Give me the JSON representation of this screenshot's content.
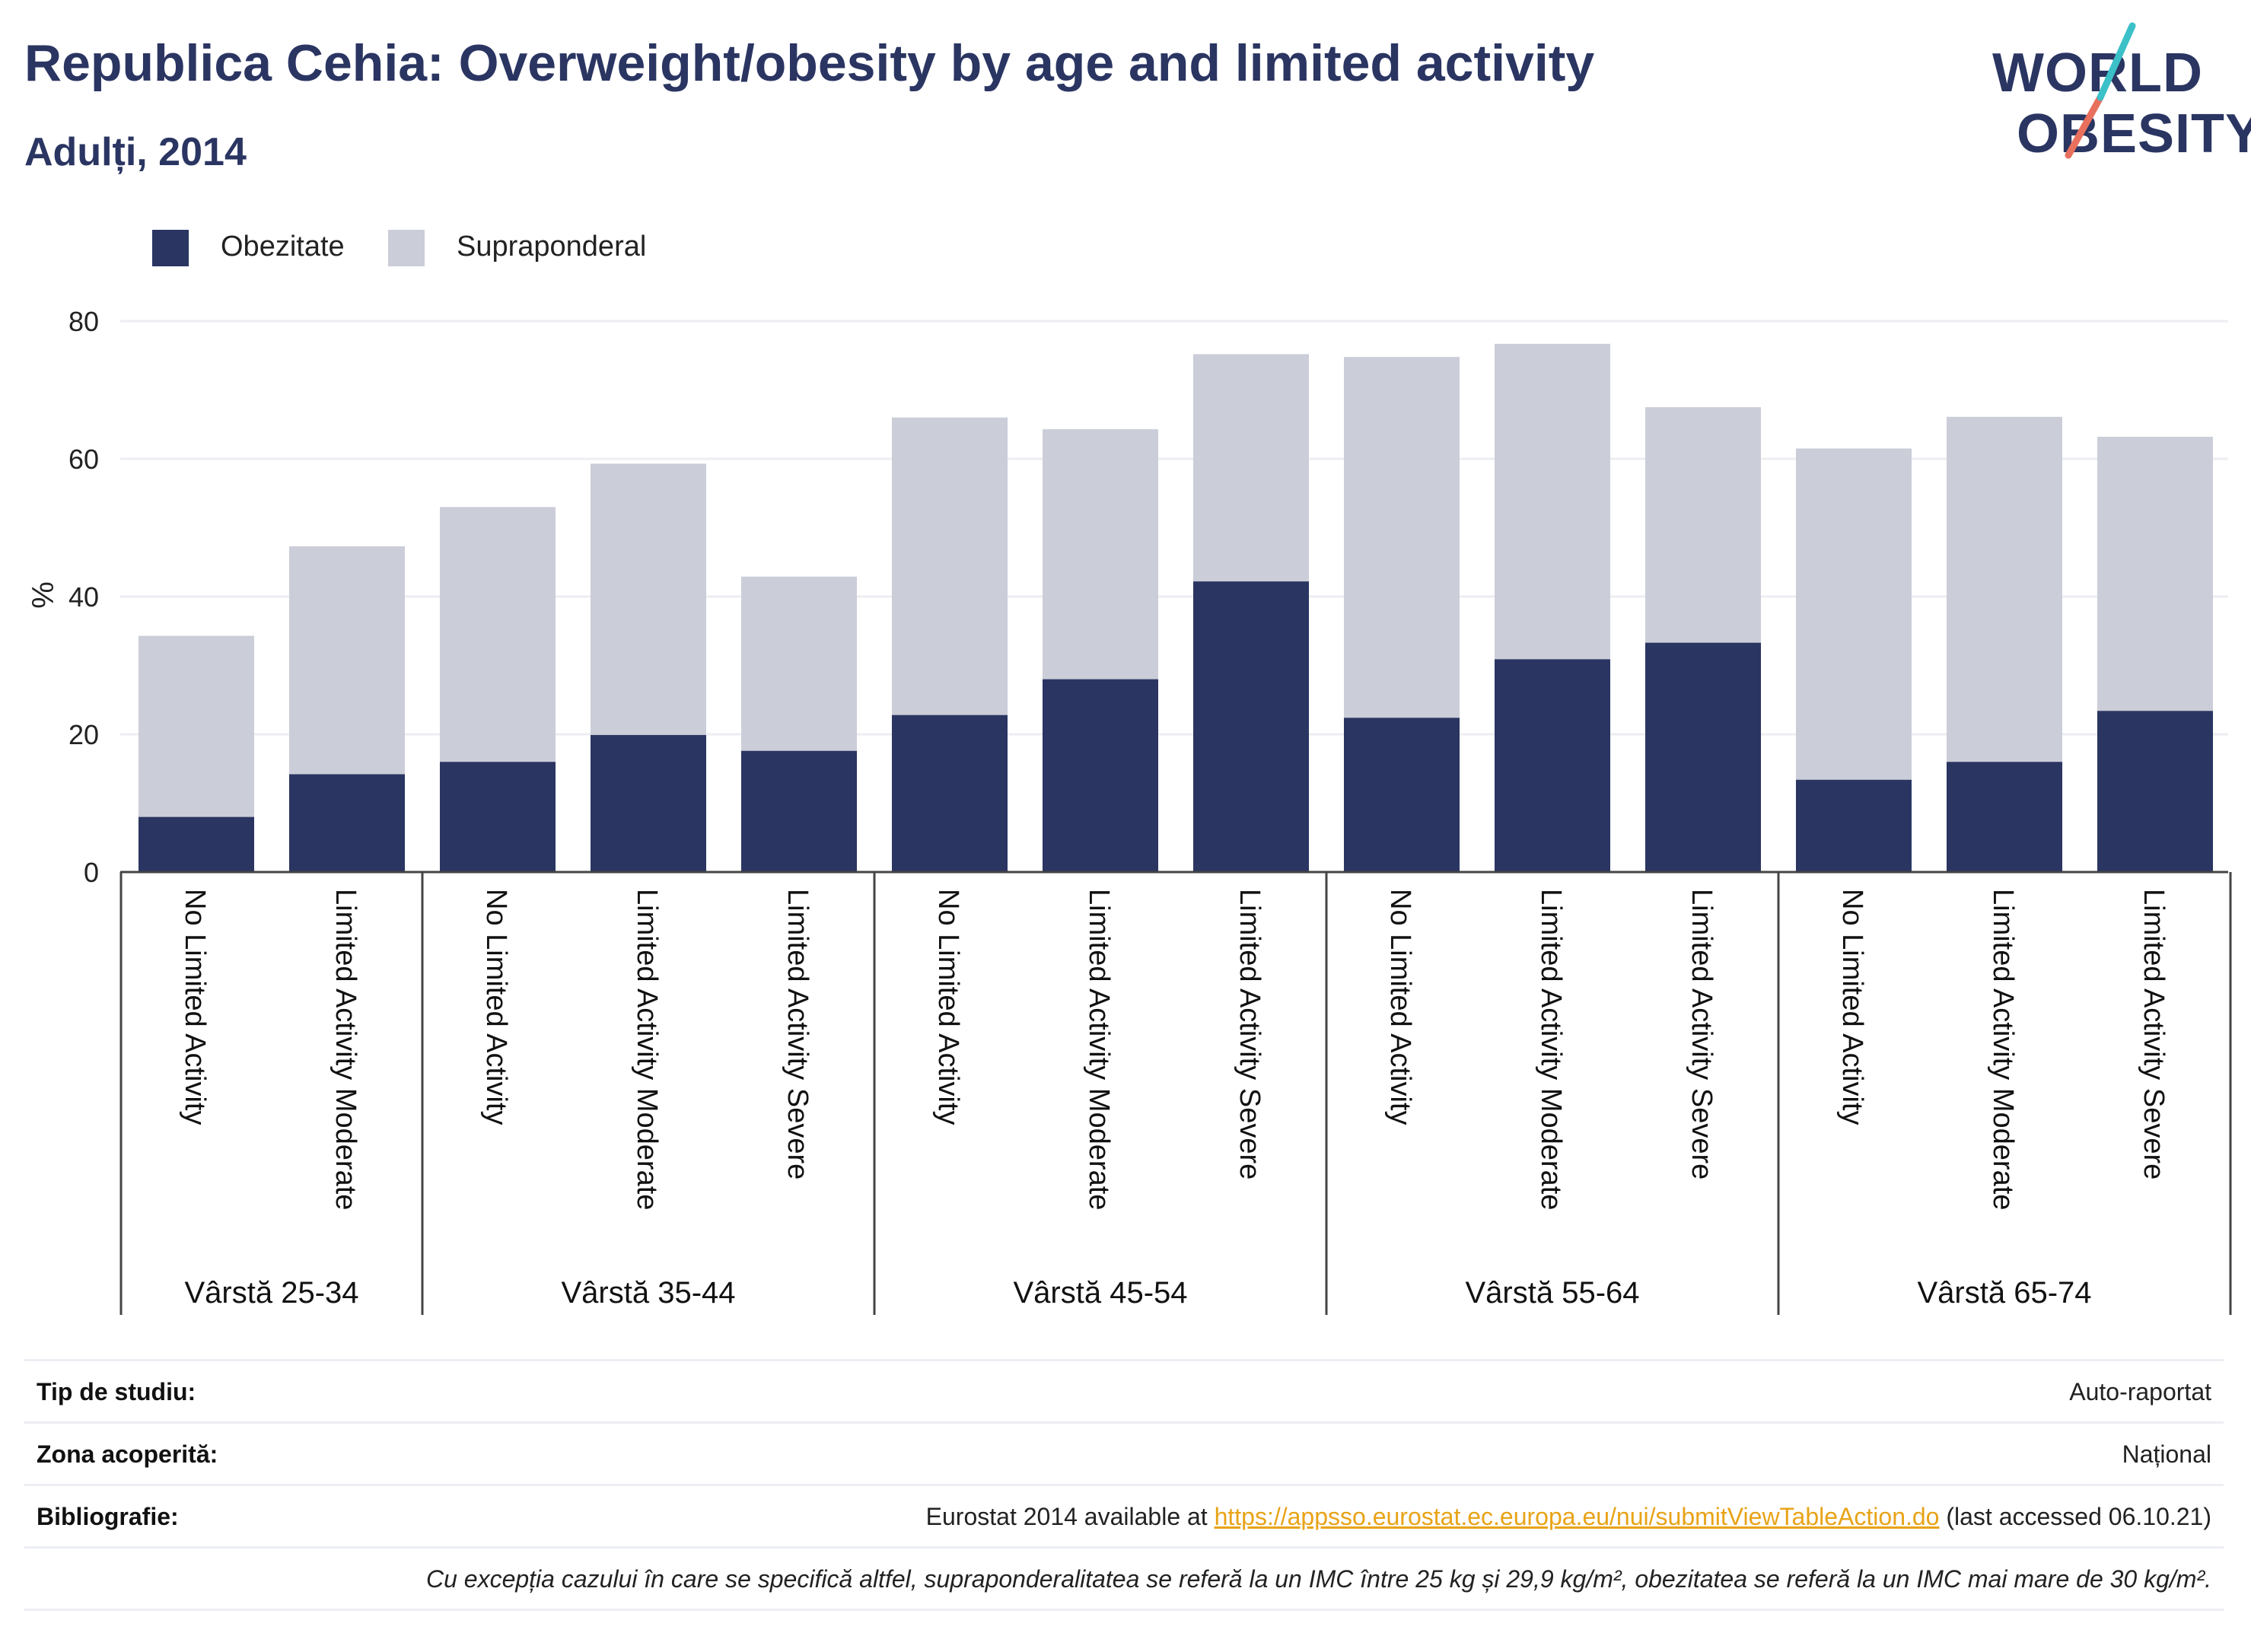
{
  "title": "Republica Cehia: Overweight/obesity by age and limited activity",
  "subtitle": "Adulți, 2014",
  "logo": {
    "line1": "WORLD",
    "line2": "OBESITY"
  },
  "colors": {
    "obesity": "#2a3562",
    "overweight": "#cbcdd8",
    "title": "#2a3562",
    "link": "#e8a317"
  },
  "legend": [
    {
      "label": "Obezitate",
      "color": "#2a3562"
    },
    {
      "label": "Supraponderal",
      "color": "#cbcdd8"
    }
  ],
  "chart_data": {
    "type": "bar",
    "stacked": true,
    "ylabel": "%",
    "ylim": [
      0,
      80
    ],
    "yticks": [
      0,
      20,
      40,
      60,
      80
    ],
    "grid": true,
    "legend_position": "top-left",
    "groups": [
      {
        "label": "Vârstă 25-34",
        "categories": [
          "No Limited Activity",
          "Limited Activity Moderate"
        ]
      },
      {
        "label": "Vârstă 35-44",
        "categories": [
          "No Limited Activity",
          "Limited Activity Moderate",
          "Limited Activity Severe"
        ]
      },
      {
        "label": "Vârstă 45-54",
        "categories": [
          "No Limited Activity",
          "Limited Activity Moderate",
          "Limited Activity Severe"
        ]
      },
      {
        "label": "Vârstă 55-64",
        "categories": [
          "No Limited Activity",
          "Limited Activity Moderate",
          "Limited Activity Severe"
        ]
      },
      {
        "label": "Vârstă 65-74",
        "categories": [
          "No Limited Activity",
          "Limited Activity Moderate",
          "Limited Activity Severe"
        ]
      }
    ],
    "series": [
      {
        "name": "Obezitate",
        "values": [
          8.0,
          14.2,
          16.0,
          19.9,
          17.6,
          22.8,
          28.0,
          42.2,
          22.4,
          30.9,
          33.3,
          13.4,
          16.0,
          23.4
        ]
      },
      {
        "name": "Supraponderal",
        "values": [
          26.3,
          33.1,
          37.0,
          39.4,
          25.3,
          43.2,
          36.3,
          33.0,
          52.4,
          45.8,
          34.2,
          48.1,
          50.1,
          39.8
        ]
      }
    ]
  },
  "info": {
    "study_type": {
      "label": "Tip de studiu:",
      "value": "Auto-raportat"
    },
    "coverage": {
      "label": "Zona acoperită:",
      "value": "Național"
    },
    "bibliography": {
      "label": "Bibliografie:",
      "prefix": "Eurostat 2014 available at ",
      "link": "https://appsso.eurostat.ec.europa.eu/nui/submitViewTableAction.do",
      "suffix": " (last accessed 06.10.21)"
    },
    "note": "Cu excepția cazului în care se specifică altfel, supraponderalitatea se referă la un IMC între 25 kg și 29,9 kg/m², obezitatea se referă la un IMC mai mare de 30 kg/m²."
  }
}
